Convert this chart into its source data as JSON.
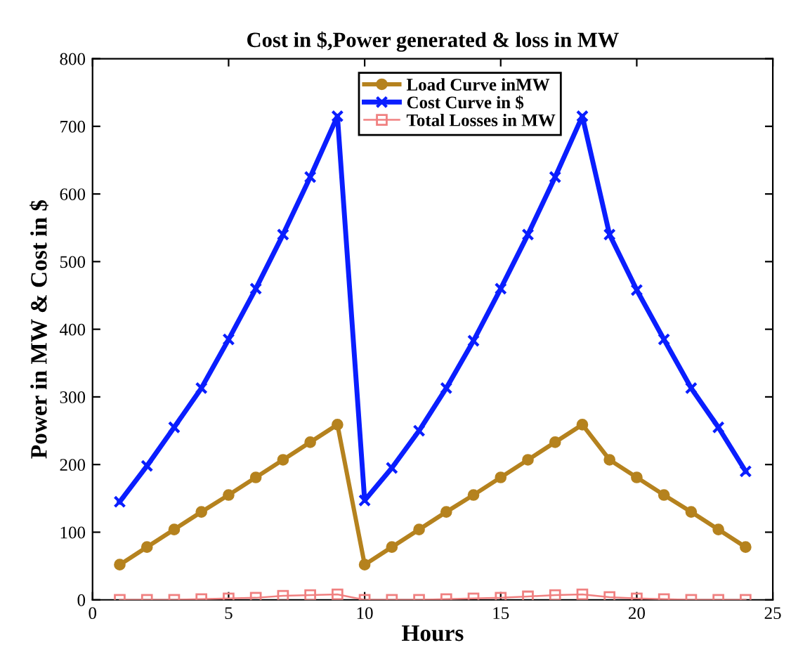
{
  "chart_data": {
    "type": "line",
    "title": "Cost in $,Power generated & loss in MW",
    "xlabel": "Hours",
    "ylabel": "Power in MW & Cost in $",
    "x": [
      1,
      2,
      3,
      4,
      5,
      6,
      7,
      8,
      9,
      10,
      11,
      12,
      13,
      14,
      15,
      16,
      17,
      18,
      19,
      20,
      21,
      22,
      23,
      24
    ],
    "series": [
      {
        "name": "Load Curve inMW",
        "color": "#b5821e",
        "marker": "circle",
        "values": [
          52,
          78,
          104,
          130,
          155,
          181,
          207,
          233,
          259,
          52,
          78,
          104,
          130,
          155,
          181,
          207,
          233,
          259,
          207,
          181,
          155,
          130,
          104,
          78
        ]
      },
      {
        "name": "Cost Curve in $",
        "color": "#0a1eff",
        "marker": "cross",
        "values": [
          145,
          198,
          255,
          313,
          385,
          460,
          540,
          625,
          715,
          147,
          195,
          250,
          313,
          383,
          460,
          540,
          625,
          715,
          540,
          458,
          385,
          313,
          255,
          190
        ]
      },
      {
        "name": "Total Losses in MW",
        "color": "#f08080",
        "marker": "square",
        "values": [
          0,
          0,
          0,
          1,
          2,
          3,
          6,
          7,
          8,
          0,
          0,
          0,
          1,
          2,
          3,
          5,
          7,
          8,
          4,
          2,
          1,
          0,
          0,
          0
        ]
      }
    ],
    "xlim": [
      0,
      25
    ],
    "xticks": [
      0,
      5,
      10,
      15,
      20,
      25
    ],
    "ylim": [
      0,
      800
    ],
    "yticks": [
      0,
      100,
      200,
      300,
      400,
      500,
      600,
      700,
      800
    ],
    "grid": false,
    "legend": "top",
    "line_style": "solid"
  }
}
